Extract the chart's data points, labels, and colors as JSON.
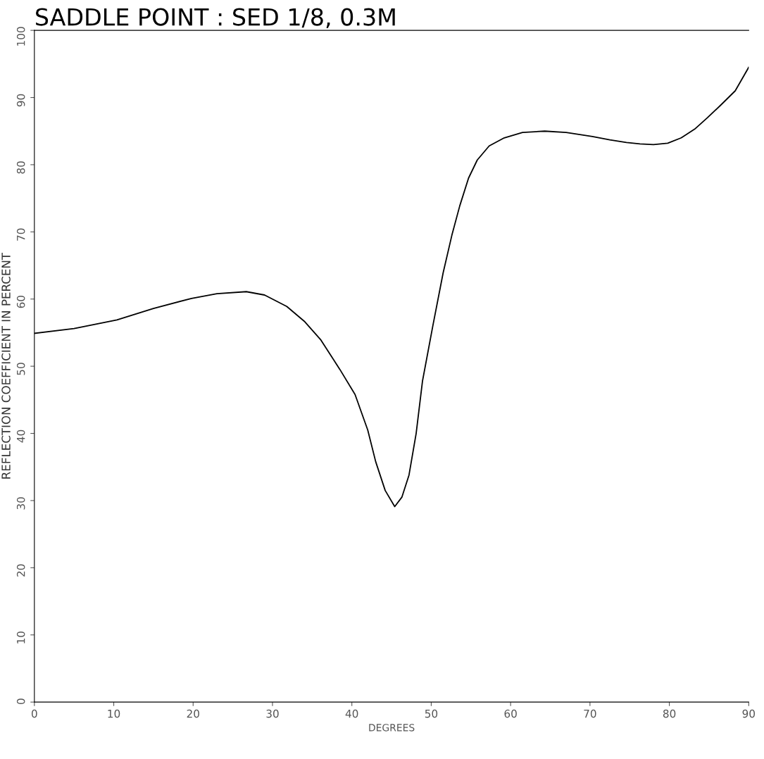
{
  "chart_data": {
    "type": "line",
    "title": "SADDLE POINT : SED 1/8, 0.3M",
    "xlabel": "DEGREES",
    "ylabel": "REFLECTION COEFFICIENT IN PERCENT",
    "xlim": [
      0,
      90
    ],
    "ylim": [
      0,
      100
    ],
    "xticks": [
      0,
      10,
      20,
      30,
      40,
      50,
      60,
      70,
      80,
      90
    ],
    "yticks": [
      0,
      10,
      20,
      30,
      40,
      50,
      60,
      70,
      80,
      90,
      100
    ],
    "grid": false,
    "marker": "none",
    "line_style": "solid",
    "series": [
      {
        "color": "#000000",
        "x": [
          0,
          5,
          10.4,
          15,
          19.8,
          23,
          26.7,
          29,
          31.8,
          34,
          36.1,
          38.5,
          40.4,
          42,
          43,
          44.2,
          45.4,
          46.3,
          47.2,
          48.1,
          48.9,
          50.2,
          51.5,
          52.6,
          53.6,
          54.7,
          55.8,
          57.3,
          59.2,
          61.5,
          64.3,
          67,
          70.3,
          72.5,
          74.6,
          76.3,
          78,
          79.8,
          81.5,
          83.2,
          84.8,
          86.5,
          88.3,
          90
        ],
        "values": [
          54.9,
          55.6,
          56.9,
          58.6,
          60.1,
          60.8,
          61.1,
          60.6,
          58.9,
          56.7,
          53.9,
          49.5,
          45.8,
          40.5,
          35.8,
          31.5,
          29.1,
          30.5,
          33.8,
          40,
          47.8,
          56,
          63.9,
          69.5,
          73.9,
          78,
          80.7,
          82.8,
          84,
          84.8,
          85,
          84.8,
          84.2,
          83.7,
          83.3,
          83.1,
          83,
          83.2,
          84,
          85.3,
          87,
          88.9,
          91,
          94.5
        ]
      }
    ]
  }
}
